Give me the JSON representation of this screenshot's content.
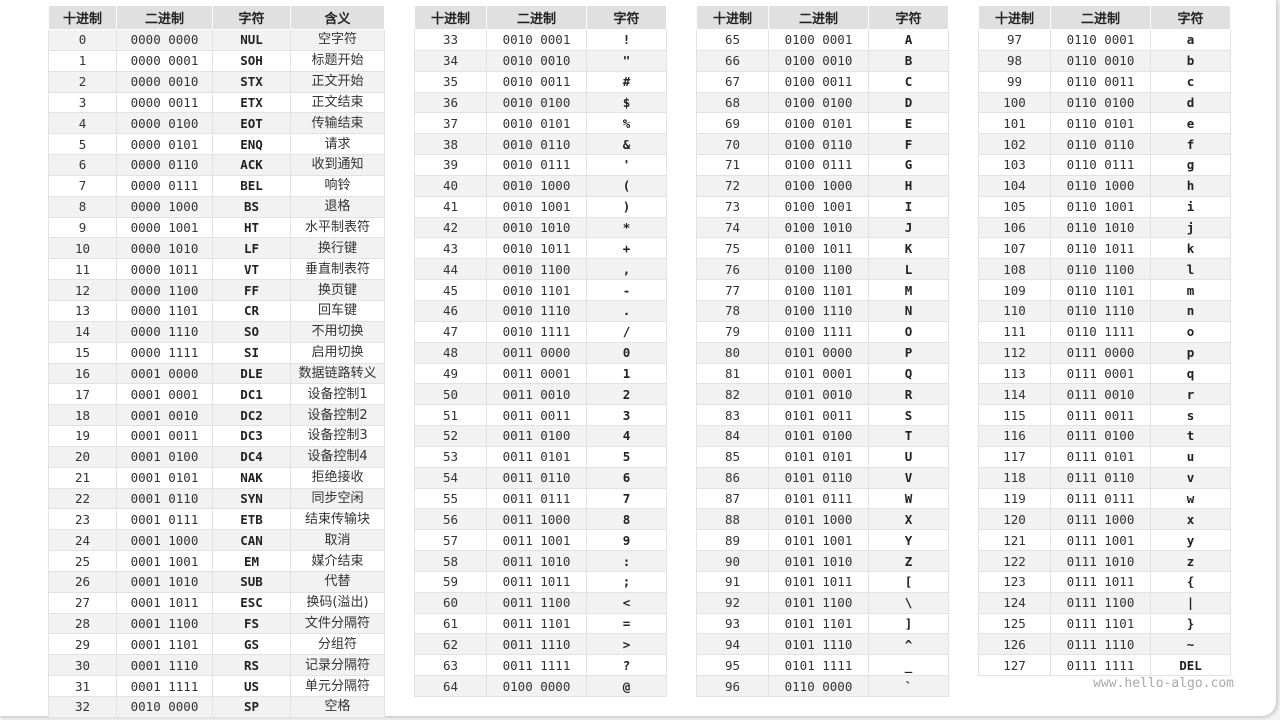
{
  "headers": [
    "十进制",
    "二进制",
    "字符",
    "含义"
  ],
  "watermark": "www.hello-algo.com",
  "colors": {
    "header_bg": "#e0e0e0",
    "even_row_bg": "#f2f2f2",
    "odd_row_bg": "#ffffff"
  },
  "tables": [
    {
      "columns": 4,
      "rows": [
        [
          "0",
          "0000 0000",
          "NUL",
          "空字符"
        ],
        [
          "1",
          "0000 0001",
          "SOH",
          "标题开始"
        ],
        [
          "2",
          "0000 0010",
          "STX",
          "正文开始"
        ],
        [
          "3",
          "0000 0011",
          "ETX",
          "正文结束"
        ],
        [
          "4",
          "0000 0100",
          "EOT",
          "传输结束"
        ],
        [
          "5",
          "0000 0101",
          "ENQ",
          "请求"
        ],
        [
          "6",
          "0000 0110",
          "ACK",
          "收到通知"
        ],
        [
          "7",
          "0000 0111",
          "BEL",
          "响铃"
        ],
        [
          "8",
          "0000 1000",
          "BS",
          "退格"
        ],
        [
          "9",
          "0000 1001",
          "HT",
          "水平制表符"
        ],
        [
          "10",
          "0000 1010",
          "LF",
          "换行键"
        ],
        [
          "11",
          "0000 1011",
          "VT",
          "垂直制表符"
        ],
        [
          "12",
          "0000 1100",
          "FF",
          "换页键"
        ],
        [
          "13",
          "0000 1101",
          "CR",
          "回车键"
        ],
        [
          "14",
          "0000 1110",
          "SO",
          "不用切换"
        ],
        [
          "15",
          "0000 1111",
          "SI",
          "启用切换"
        ],
        [
          "16",
          "0001 0000",
          "DLE",
          "数据链路转义"
        ],
        [
          "17",
          "0001 0001",
          "DC1",
          "设备控制1"
        ],
        [
          "18",
          "0001 0010",
          "DC2",
          "设备控制2"
        ],
        [
          "19",
          "0001 0011",
          "DC3",
          "设备控制3"
        ],
        [
          "20",
          "0001 0100",
          "DC4",
          "设备控制4"
        ],
        [
          "21",
          "0001 0101",
          "NAK",
          "拒绝接收"
        ],
        [
          "22",
          "0001 0110",
          "SYN",
          "同步空闲"
        ],
        [
          "23",
          "0001 0111",
          "ETB",
          "结束传输块"
        ],
        [
          "24",
          "0001 1000",
          "CAN",
          "取消"
        ],
        [
          "25",
          "0001 1001",
          "EM",
          "媒介结束"
        ],
        [
          "26",
          "0001 1010",
          "SUB",
          "代替"
        ],
        [
          "27",
          "0001 1011",
          "ESC",
          "换码(溢出)"
        ],
        [
          "28",
          "0001 1100",
          "FS",
          "文件分隔符"
        ],
        [
          "29",
          "0001 1101",
          "GS",
          "分组符"
        ],
        [
          "30",
          "0001 1110",
          "RS",
          "记录分隔符"
        ],
        [
          "31",
          "0001 1111",
          "US",
          "单元分隔符"
        ],
        [
          "32",
          "0010 0000",
          "SP",
          "空格"
        ]
      ]
    },
    {
      "columns": 3,
      "rows": [
        [
          "33",
          "0010 0001",
          "!"
        ],
        [
          "34",
          "0010 0010",
          "\""
        ],
        [
          "35",
          "0010 0011",
          "#"
        ],
        [
          "36",
          "0010 0100",
          "$"
        ],
        [
          "37",
          "0010 0101",
          "%"
        ],
        [
          "38",
          "0010 0110",
          "&"
        ],
        [
          "39",
          "0010 0111",
          "'"
        ],
        [
          "40",
          "0010 1000",
          "("
        ],
        [
          "41",
          "0010 1001",
          ")"
        ],
        [
          "42",
          "0010 1010",
          "*"
        ],
        [
          "43",
          "0010 1011",
          "+"
        ],
        [
          "44",
          "0010 1100",
          ","
        ],
        [
          "45",
          "0010 1101",
          "-"
        ],
        [
          "46",
          "0010 1110",
          "."
        ],
        [
          "47",
          "0010 1111",
          "/"
        ],
        [
          "48",
          "0011 0000",
          "0"
        ],
        [
          "49",
          "0011 0001",
          "1"
        ],
        [
          "50",
          "0011 0010",
          "2"
        ],
        [
          "51",
          "0011 0011",
          "3"
        ],
        [
          "52",
          "0011 0100",
          "4"
        ],
        [
          "53",
          "0011 0101",
          "5"
        ],
        [
          "54",
          "0011 0110",
          "6"
        ],
        [
          "55",
          "0011 0111",
          "7"
        ],
        [
          "56",
          "0011 1000",
          "8"
        ],
        [
          "57",
          "0011 1001",
          "9"
        ],
        [
          "58",
          "0011 1010",
          ":"
        ],
        [
          "59",
          "0011 1011",
          ";"
        ],
        [
          "60",
          "0011 1100",
          "<"
        ],
        [
          "61",
          "0011 1101",
          "="
        ],
        [
          "62",
          "0011 1110",
          ">"
        ],
        [
          "63",
          "0011 1111",
          "?"
        ],
        [
          "64",
          "0100 0000",
          "@"
        ]
      ]
    },
    {
      "columns": 3,
      "rows": [
        [
          "65",
          "0100 0001",
          "A"
        ],
        [
          "66",
          "0100 0010",
          "B"
        ],
        [
          "67",
          "0100 0011",
          "C"
        ],
        [
          "68",
          "0100 0100",
          "D"
        ],
        [
          "69",
          "0100 0101",
          "E"
        ],
        [
          "70",
          "0100 0110",
          "F"
        ],
        [
          "71",
          "0100 0111",
          "G"
        ],
        [
          "72",
          "0100 1000",
          "H"
        ],
        [
          "73",
          "0100 1001",
          "I"
        ],
        [
          "74",
          "0100 1010",
          "J"
        ],
        [
          "75",
          "0100 1011",
          "K"
        ],
        [
          "76",
          "0100 1100",
          "L"
        ],
        [
          "77",
          "0100 1101",
          "M"
        ],
        [
          "78",
          "0100 1110",
          "N"
        ],
        [
          "79",
          "0100 1111",
          "O"
        ],
        [
          "80",
          "0101 0000",
          "P"
        ],
        [
          "81",
          "0101 0001",
          "Q"
        ],
        [
          "82",
          "0101 0010",
          "R"
        ],
        [
          "83",
          "0101 0011",
          "S"
        ],
        [
          "84",
          "0101 0100",
          "T"
        ],
        [
          "85",
          "0101 0101",
          "U"
        ],
        [
          "86",
          "0101 0110",
          "V"
        ],
        [
          "87",
          "0101 0111",
          "W"
        ],
        [
          "88",
          "0101 1000",
          "X"
        ],
        [
          "89",
          "0101 1001",
          "Y"
        ],
        [
          "90",
          "0101 1010",
          "Z"
        ],
        [
          "91",
          "0101 1011",
          "["
        ],
        [
          "92",
          "0101 1100",
          "\\"
        ],
        [
          "93",
          "0101 1101",
          "]"
        ],
        [
          "94",
          "0101 1110",
          "^"
        ],
        [
          "95",
          "0101 1111",
          "_"
        ],
        [
          "96",
          "0110 0000",
          "`"
        ]
      ]
    },
    {
      "columns": 3,
      "rows": [
        [
          "97",
          "0110 0001",
          "a"
        ],
        [
          "98",
          "0110 0010",
          "b"
        ],
        [
          "99",
          "0110 0011",
          "c"
        ],
        [
          "100",
          "0110 0100",
          "d"
        ],
        [
          "101",
          "0110 0101",
          "e"
        ],
        [
          "102",
          "0110 0110",
          "f"
        ],
        [
          "103",
          "0110 0111",
          "g"
        ],
        [
          "104",
          "0110 1000",
          "h"
        ],
        [
          "105",
          "0110 1001",
          "i"
        ],
        [
          "106",
          "0110 1010",
          "j"
        ],
        [
          "107",
          "0110 1011",
          "k"
        ],
        [
          "108",
          "0110 1100",
          "l"
        ],
        [
          "109",
          "0110 1101",
          "m"
        ],
        [
          "110",
          "0110 1110",
          "n"
        ],
        [
          "111",
          "0110 1111",
          "o"
        ],
        [
          "112",
          "0111 0000",
          "p"
        ],
        [
          "113",
          "0111 0001",
          "q"
        ],
        [
          "114",
          "0111 0010",
          "r"
        ],
        [
          "115",
          "0111 0011",
          "s"
        ],
        [
          "116",
          "0111 0100",
          "t"
        ],
        [
          "117",
          "0111 0101",
          "u"
        ],
        [
          "118",
          "0111 0110",
          "v"
        ],
        [
          "119",
          "0111 0111",
          "w"
        ],
        [
          "120",
          "0111 1000",
          "x"
        ],
        [
          "121",
          "0111 1001",
          "y"
        ],
        [
          "122",
          "0111 1010",
          "z"
        ],
        [
          "123",
          "0111 1011",
          "{"
        ],
        [
          "124",
          "0111 1100",
          "|"
        ],
        [
          "125",
          "0111 1101",
          "}"
        ],
        [
          "126",
          "0111 1110",
          "~"
        ],
        [
          "127",
          "0111 1111",
          "DEL"
        ]
      ]
    }
  ]
}
